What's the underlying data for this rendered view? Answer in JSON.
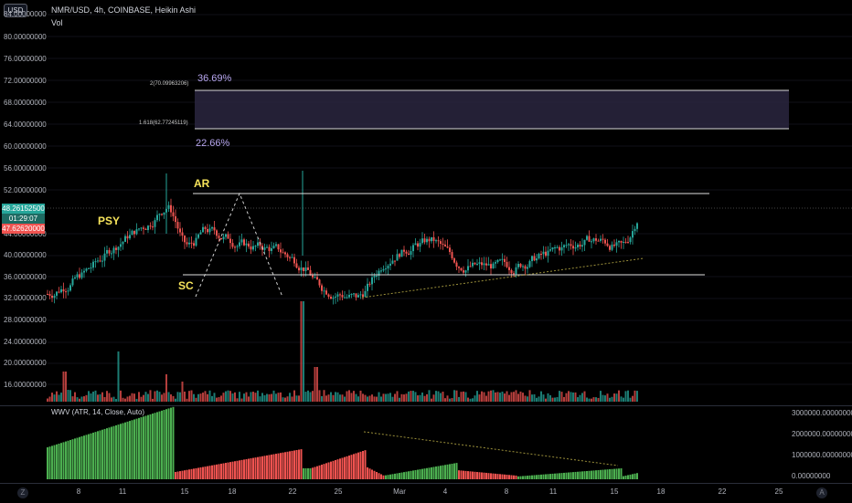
{
  "legend": {
    "title": "NMR/USD, 4h, COINBASE, Heikin Ashi",
    "vol": "Vol",
    "currency_badge": "USD"
  },
  "price_axis": {
    "labels": [
      "84.00000000",
      "80.00000000",
      "76.00000000",
      "72.00000000",
      "68.00000000",
      "64.00000000",
      "60.00000000",
      "56.00000000",
      "52.00000000",
      "44.00000000",
      "40.00000000",
      "36.00000000",
      "32.00000000",
      "28.00000000",
      "24.00000000",
      "20.00000000",
      "16.00000000"
    ],
    "current_price": "48.26152500",
    "countdown": "01:29:07",
    "secondary_price": "47.62620000"
  },
  "annotations": {
    "psy": "PSY",
    "sc": "SC",
    "ar": "AR",
    "pct_top": "36.69%",
    "pct_bottom": "22.66%",
    "fib_2": "2(70.09963206)",
    "fib_1618": "1.618(62.77245119)"
  },
  "oscillator": {
    "label": "WWV (ATR, 14, Close, Auto)",
    "axis_labels": [
      "3000000.00000000",
      "2000000.00000000",
      "1000000.00000000",
      "0.00000000"
    ]
  },
  "time_axis": {
    "labels": [
      "8",
      "11",
      "15",
      "18",
      "22",
      "25",
      "Mar",
      "4",
      "8",
      "11",
      "15",
      "18",
      "22",
      "25"
    ],
    "left_icon": "Z",
    "right_icon": "A"
  },
  "colors": {
    "up": "#26a69a",
    "green_bar": "#4caf50",
    "down": "#ef5350",
    "price_tag": "#26a69a",
    "secondary_tag": "#ef5350",
    "annotation": "#f7e45b",
    "fib_zone": "#2a2640"
  }
}
